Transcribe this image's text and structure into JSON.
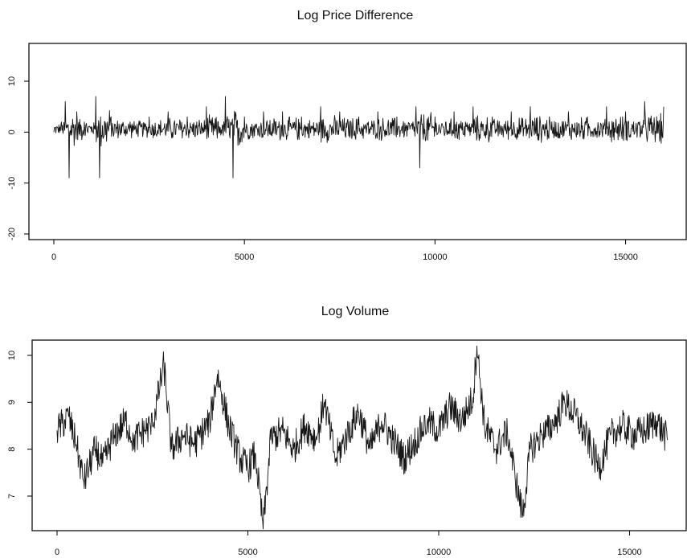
{
  "chart_data": [
    {
      "type": "line",
      "title": "Log Price Difference",
      "xlabel": "",
      "ylabel": "",
      "xlim": [
        0,
        16000
      ],
      "ylim": [
        -21,
        16
      ],
      "x_ticks": [
        0,
        5000,
        10000,
        15000
      ],
      "y_ticks": [
        -20,
        -10,
        0,
        10
      ],
      "grid": false,
      "series": [
        {
          "x": [
            0,
            200,
            300,
            400,
            600,
            800,
            1000,
            1100,
            1200,
            1500,
            2000,
            2500,
            3000,
            3500,
            4000,
            4300,
            4500,
            4700,
            5000,
            5500,
            6000,
            6500,
            7000,
            7500,
            8000,
            8500,
            9000,
            9500,
            9600,
            10000,
            10500,
            10800,
            11000,
            11500,
            12000,
            12500,
            13000,
            13500,
            14000,
            14500,
            15000,
            15500,
            16000
          ],
          "values": [
            0,
            2,
            6,
            -9,
            4,
            2,
            1,
            7,
            -9,
            3,
            2,
            3,
            4,
            3,
            5,
            2,
            7,
            -9,
            3,
            4,
            4,
            3,
            5,
            4,
            3,
            4,
            3,
            5,
            -7,
            3,
            4,
            2,
            5,
            3,
            4,
            5,
            3,
            4,
            3,
            5,
            4,
            6,
            5
          ]
        }
      ]
    },
    {
      "type": "line",
      "title": "Log Volume",
      "xlabel": "",
      "ylabel": "",
      "xlim": [
        0,
        16000
      ],
      "ylim": [
        6.2,
        10.3
      ],
      "x_ticks": [
        0,
        5000,
        10000,
        15000
      ],
      "y_ticks": [
        7,
        8,
        9,
        10
      ],
      "grid": false,
      "series": [
        {
          "x": [
            0,
            300,
            500,
            700,
            1000,
            1200,
            1500,
            1800,
            2000,
            2300,
            2500,
            2800,
            3000,
            3300,
            3600,
            4000,
            4200,
            4500,
            4800,
            5000,
            5200,
            5400,
            5600,
            5900,
            6200,
            6500,
            6800,
            7000,
            7300,
            7600,
            7900,
            8200,
            8500,
            8800,
            9100,
            9400,
            9700,
            10000,
            10300,
            10600,
            10900,
            11000,
            11200,
            11500,
            11800,
            12000,
            12200,
            12400,
            12700,
            13000,
            13300,
            13600,
            13900,
            14200,
            14500,
            14800,
            15100,
            15400,
            15700,
            16000
          ],
          "values": [
            8.4,
            8.7,
            8.1,
            7.3,
            8.0,
            7.7,
            8.3,
            8.6,
            8.2,
            8.4,
            8.5,
            9.8,
            8.0,
            8.3,
            8.1,
            8.6,
            9.6,
            8.5,
            7.8,
            7.6,
            7.9,
            6.3,
            8.2,
            8.4,
            8.0,
            8.5,
            8.2,
            9.0,
            7.8,
            8.3,
            8.8,
            8.0,
            8.6,
            8.2,
            7.8,
            8.2,
            8.6,
            8.4,
            8.9,
            8.6,
            9.1,
            10.2,
            8.5,
            8.0,
            8.4,
            7.4,
            6.6,
            8.0,
            8.3,
            8.5,
            9.0,
            8.7,
            8.2,
            7.6,
            8.3,
            8.5,
            8.3,
            8.4,
            8.6,
            8.2
          ]
        }
      ]
    }
  ]
}
